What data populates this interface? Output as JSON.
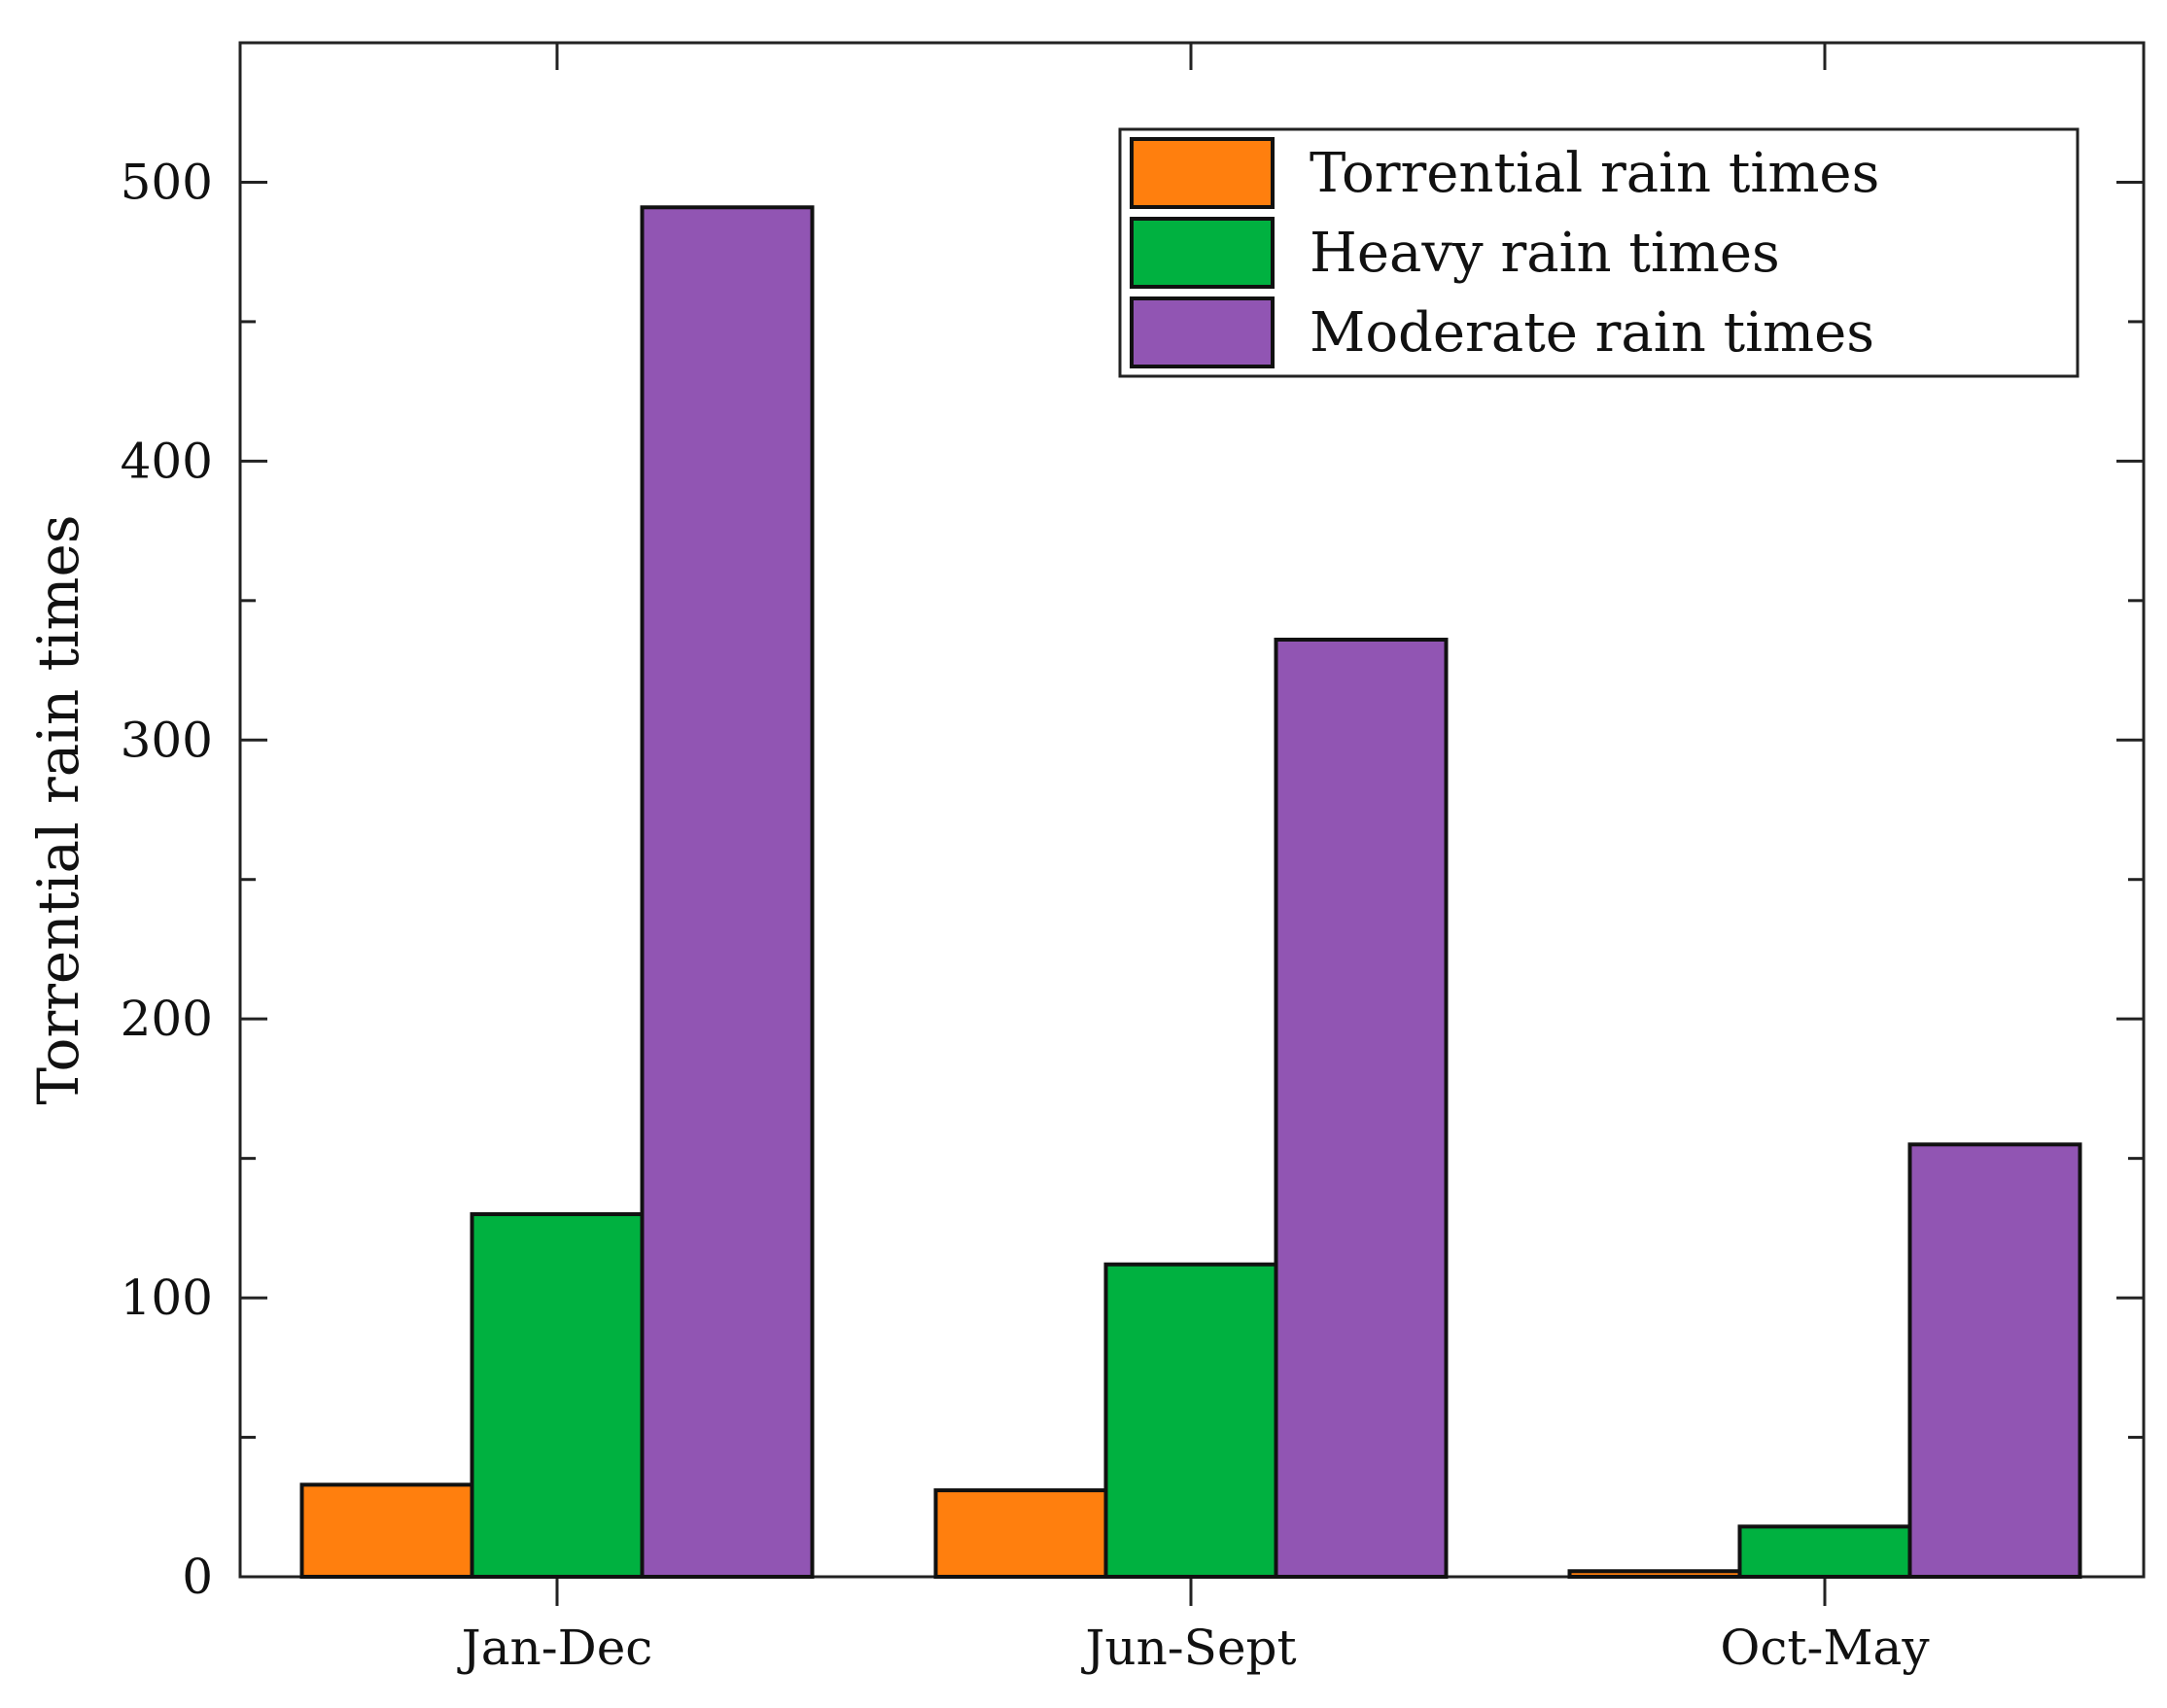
{
  "chart_data": {
    "type": "bar",
    "title": "",
    "xlabel": "",
    "ylabel": "Torrential rain times",
    "categories": [
      "Jan-Dec",
      "Jun-Sept",
      "Oct-May"
    ],
    "series": [
      {
        "name": "Torrential rain times",
        "color": "#ff7f0e",
        "values": [
          33,
          31,
          2
        ]
      },
      {
        "name": "Heavy rain times",
        "color": "#00b140",
        "values": [
          130,
          112,
          18
        ]
      },
      {
        "name": "Moderate rain times",
        "color": "#9155b3",
        "values": [
          491,
          336,
          155
        ]
      }
    ],
    "ylim": [
      0,
      550
    ],
    "yticks": [
      0,
      100,
      200,
      300,
      400,
      500
    ],
    "yticks_minor": [
      50,
      150,
      250,
      350,
      450
    ],
    "grid": false,
    "legend_position": "top-right"
  }
}
